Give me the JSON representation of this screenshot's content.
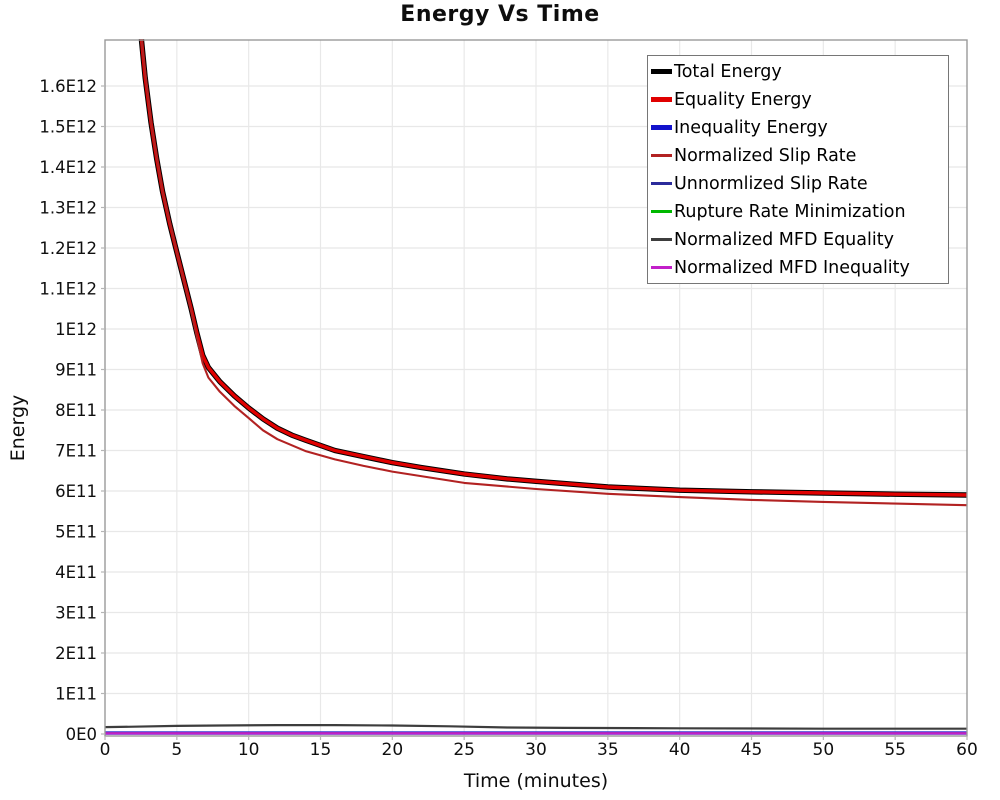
{
  "chart": {
    "title": "Energy Vs Time",
    "xlabel": "Time (minutes)",
    "ylabel": "Energy"
  },
  "colors": {
    "background": "#ffffff",
    "gridline": "#e8e8e8",
    "frame": "#999999",
    "tick_text": "#0f0f0f",
    "legend_border": "#767676"
  },
  "chart_data": {
    "type": "line",
    "title": "Energy Vs Time",
    "xlabel": "Time (minutes)",
    "ylabel": "Energy",
    "xlim": [
      0,
      60
    ],
    "ylim": [
      0,
      1710000000000
    ],
    "grid": true,
    "legend_position": "upper right",
    "x_ticks": [
      0,
      5,
      10,
      15,
      20,
      25,
      30,
      35,
      40,
      45,
      50,
      55,
      60
    ],
    "y_ticks": [
      {
        "value_e11": 0,
        "label": "0E0"
      },
      {
        "value_e11": 1,
        "label": "1E11"
      },
      {
        "value_e11": 2,
        "label": "2E11"
      },
      {
        "value_e11": 3,
        "label": "3E11"
      },
      {
        "value_e11": 4,
        "label": "4E11"
      },
      {
        "value_e11": 5,
        "label": "5E11"
      },
      {
        "value_e11": 6,
        "label": "6E11"
      },
      {
        "value_e11": 7,
        "label": "7E11"
      },
      {
        "value_e11": 8,
        "label": "8E11"
      },
      {
        "value_e11": 9,
        "label": "9E11"
      },
      {
        "value_e11": 10,
        "label": "1E12"
      },
      {
        "value_e11": 11,
        "label": "1.1E12"
      },
      {
        "value_e11": 12,
        "label": "1.2E12"
      },
      {
        "value_e11": 13,
        "label": "1.3E12"
      },
      {
        "value_e11": 14,
        "label": "1.4E12"
      },
      {
        "value_e11": 15,
        "label": "1.5E12"
      },
      {
        "value_e11": 16,
        "label": "1.6E12"
      }
    ],
    "value_unit": 100000000000,
    "series": [
      {
        "name": "Total Energy",
        "slug": "total-energy",
        "color": "#000000",
        "width": 5.4,
        "legend_thick": true,
        "x": [
          2.3,
          2.55,
          2.8,
          3.2,
          3.6,
          4,
          4.5,
          5,
          5.5,
          6,
          6.4,
          6.8,
          7.2,
          8,
          9,
          10,
          11,
          12,
          13,
          14,
          16,
          18,
          20,
          22,
          25,
          28,
          30,
          35,
          40,
          45,
          50,
          55,
          60
        ],
        "values_e11": [
          19,
          17.1,
          16.2,
          15.1,
          14.2,
          13.4,
          12.6,
          11.9,
          11.2,
          10.5,
          9.9,
          9.35,
          9.05,
          8.7,
          8.35,
          8.05,
          7.78,
          7.55,
          7.38,
          7.25,
          7.0,
          6.85,
          6.7,
          6.58,
          6.42,
          6.3,
          6.24,
          6.1,
          6.02,
          5.98,
          5.95,
          5.92,
          5.9
        ]
      },
      {
        "name": "Equality Energy",
        "slug": "equality-energy",
        "color": "#e00000",
        "width": 3.4,
        "legend_thick": true,
        "x": [
          2.3,
          2.55,
          2.8,
          3.2,
          3.6,
          4,
          4.5,
          5,
          5.5,
          6,
          6.4,
          6.8,
          7.2,
          8,
          9,
          10,
          11,
          12,
          13,
          14,
          16,
          18,
          20,
          22,
          25,
          28,
          30,
          35,
          40,
          45,
          50,
          55,
          60
        ],
        "values_e11": [
          19,
          17.1,
          16.2,
          15.1,
          14.2,
          13.4,
          12.6,
          11.9,
          11.2,
          10.5,
          9.9,
          9.35,
          9.05,
          8.7,
          8.35,
          8.05,
          7.78,
          7.55,
          7.38,
          7.25,
          7.0,
          6.85,
          6.7,
          6.58,
          6.42,
          6.3,
          6.24,
          6.1,
          6.02,
          5.98,
          5.95,
          5.92,
          5.9
        ]
      },
      {
        "name": "Inequality Energy",
        "slug": "inequality-energy",
        "color": "#1212cc",
        "width": 3.4,
        "legend_thick": true,
        "x": [
          0,
          10,
          20,
          30,
          40,
          50,
          60
        ],
        "values_e11": [
          0.022,
          0.022,
          0.022,
          0.022,
          0.022,
          0.022,
          0.022
        ]
      },
      {
        "name": "Normalized Slip Rate",
        "slug": "normalized-slip-rate",
        "color": "#b22222",
        "width": 2.1,
        "legend_thick": false,
        "x": [
          2.3,
          2.55,
          3.2,
          4,
          5,
          6,
          6.4,
          6.8,
          7.2,
          8,
          9,
          10,
          11,
          12,
          14,
          16,
          18,
          20,
          25,
          30,
          35,
          40,
          45,
          50,
          55,
          60
        ],
        "values_e11": [
          19,
          17.1,
          15.1,
          13.4,
          11.9,
          10.45,
          9.8,
          9.15,
          8.8,
          8.45,
          8.1,
          7.8,
          7.5,
          7.28,
          6.98,
          6.78,
          6.62,
          6.48,
          6.2,
          6.05,
          5.93,
          5.85,
          5.78,
          5.73,
          5.69,
          5.65
        ]
      },
      {
        "name": "Unnormlized Slip Rate",
        "slug": "unnormalized-slip-rate",
        "color": "#2b2b9b",
        "width": 2.1,
        "legend_thick": false,
        "x": [
          0,
          15,
          30,
          45,
          60
        ],
        "values_e11": [
          0.018,
          0.018,
          0.018,
          0.018,
          0.018
        ]
      },
      {
        "name": "Rupture Rate Minimization",
        "slug": "rupture-rate-minimization",
        "color": "#00b800",
        "width": 2.1,
        "legend_thick": false,
        "x": [
          0,
          15,
          30,
          45,
          60
        ],
        "values_e11": [
          0.018,
          0.018,
          0.018,
          0.018,
          0.018
        ]
      },
      {
        "name": "Normalized MFD Equality",
        "slug": "normalized-mfd-equality",
        "color": "#3d3d3d",
        "width": 2.2,
        "legend_thick": false,
        "x": [
          0,
          2,
          5,
          8,
          12,
          16,
          20,
          24,
          28,
          32,
          40,
          50,
          60
        ],
        "values_e11": [
          0.17,
          0.18,
          0.2,
          0.21,
          0.22,
          0.22,
          0.21,
          0.19,
          0.16,
          0.15,
          0.14,
          0.13,
          0.13
        ]
      },
      {
        "name": "Normalized MFD Inequality",
        "slug": "normalized-mfd-inequality",
        "color": "#c21fc9",
        "width": 2.4,
        "legend_thick": false,
        "x": [
          0,
          15,
          30,
          45,
          60
        ],
        "values_e11": [
          0.018,
          0.018,
          0.018,
          0.018,
          0.018
        ]
      }
    ]
  }
}
